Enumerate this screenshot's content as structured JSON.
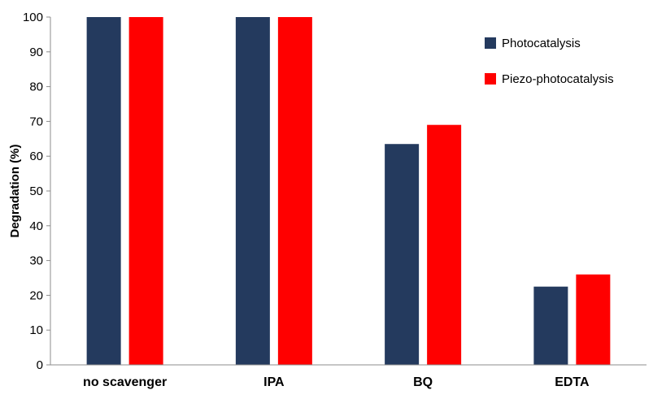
{
  "chart_data": {
    "type": "bar",
    "title": "",
    "xlabel": "",
    "ylabel": "Degradation (%)",
    "ylim": [
      0,
      100
    ],
    "yticks": [
      0,
      10,
      20,
      30,
      40,
      50,
      60,
      70,
      80,
      90,
      100
    ],
    "grid": false,
    "legend_position": "top-right",
    "categories": [
      "no scavenger",
      "IPA",
      "BQ",
      "EDTA"
    ],
    "series": [
      {
        "name": "Photocatalysis",
        "color": "#243A5E",
        "values": [
          100,
          100,
          63.5,
          22.5
        ]
      },
      {
        "name": "Piezo-photocatalysis",
        "color": "#FF0000",
        "values": [
          100,
          100,
          69,
          26
        ]
      }
    ]
  }
}
